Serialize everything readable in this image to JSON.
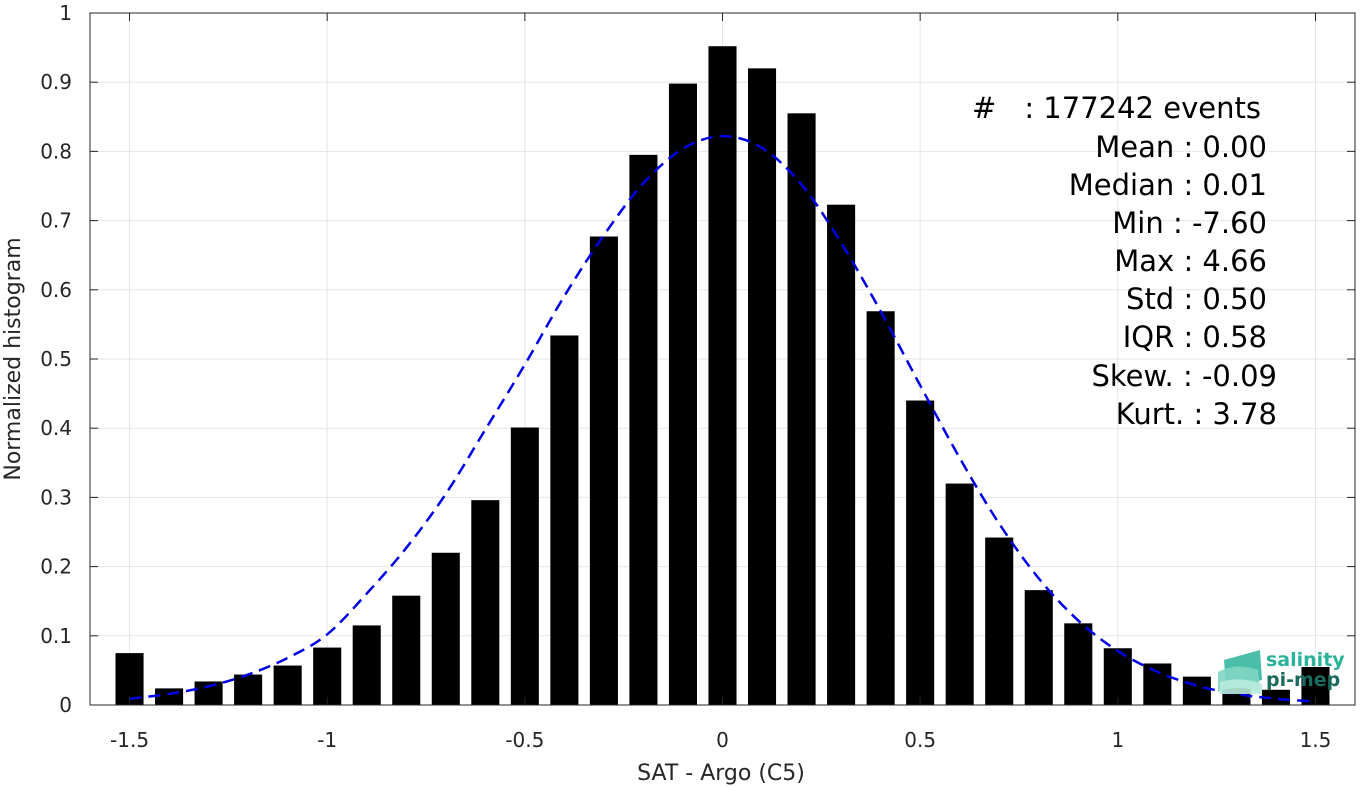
{
  "chart_data": {
    "type": "bar",
    "xlabel": "SAT - Argo (C5)",
    "ylabel": "Normalized histogram",
    "xlim": [
      -1.6,
      1.6
    ],
    "ylim": [
      0,
      1
    ],
    "grid": true,
    "x_ticks": [
      -1.5,
      -1,
      -0.5,
      0,
      0.5,
      1,
      1.5
    ],
    "x_tick_labels": [
      "-1.5",
      "-1",
      "-0.5",
      "0",
      "0.5",
      "1",
      "1.5"
    ],
    "y_ticks": [
      0,
      0.1,
      0.2,
      0.3,
      0.4,
      0.5,
      0.6,
      0.7,
      0.8,
      0.9,
      1
    ],
    "y_tick_labels": [
      "0",
      "0.1",
      "0.2",
      "0.3",
      "0.4",
      "0.5",
      "0.6",
      "0.7",
      "0.8",
      "0.9",
      "1"
    ],
    "bar_color": "#000000",
    "bars": {
      "x": [
        -1.5,
        -1.4,
        -1.3,
        -1.2,
        -1.1,
        -1.0,
        -0.9,
        -0.8,
        -0.7,
        -0.6,
        -0.5,
        -0.4,
        -0.3,
        -0.2,
        -0.1,
        0.0,
        0.1,
        0.2,
        0.3,
        0.4,
        0.5,
        0.6,
        0.7,
        0.8,
        0.9,
        1.0,
        1.1,
        1.2,
        1.3,
        1.4,
        1.5
      ],
      "values": [
        0.075,
        0.024,
        0.034,
        0.044,
        0.057,
        0.083,
        0.115,
        0.158,
        0.22,
        0.296,
        0.401,
        0.534,
        0.677,
        0.795,
        0.898,
        0.952,
        0.92,
        0.855,
        0.723,
        0.569,
        0.44,
        0.32,
        0.242,
        0.166,
        0.118,
        0.082,
        0.06,
        0.041,
        0.028,
        0.022,
        0.055
      ]
    },
    "fit_curve": {
      "style": "dashed",
      "color": "#0000e6",
      "x": [
        -1.5,
        -1.4,
        -1.3,
        -1.2,
        -1.1,
        -1.0,
        -0.9,
        -0.8,
        -0.7,
        -0.6,
        -0.5,
        -0.4,
        -0.3,
        -0.2,
        -0.1,
        0.0,
        0.1,
        0.2,
        0.3,
        0.4,
        0.5,
        0.6,
        0.7,
        0.8,
        0.9,
        1.0,
        1.1,
        1.2,
        1.3,
        1.4,
        1.5
      ],
      "y": [
        0.009,
        0.016,
        0.027,
        0.044,
        0.068,
        0.102,
        0.161,
        0.227,
        0.305,
        0.398,
        0.492,
        0.591,
        0.679,
        0.754,
        0.804,
        0.822,
        0.805,
        0.752,
        0.668,
        0.569,
        0.462,
        0.357,
        0.262,
        0.183,
        0.122,
        0.078,
        0.048,
        0.028,
        0.016,
        0.009,
        0.005
      ]
    }
  },
  "stats": [
    {
      "name": "#",
      "value": ": 177242 events"
    },
    {
      "name": "Mean",
      "value": ": 0.00"
    },
    {
      "name": "Median",
      "value": ": 0.01"
    },
    {
      "name": "Min",
      "value": ": -7.60"
    },
    {
      "name": "Max",
      "value": ": 4.66"
    },
    {
      "name": "Std",
      "value": ": 0.50"
    },
    {
      "name": "IQR",
      "value": ": 0.58"
    },
    {
      "name": "Skew.",
      "value": ": -0.09"
    },
    {
      "name": "Kurt.",
      "value": ": 3.78"
    }
  ],
  "logo": {
    "line1": "salinity",
    "line2": "pi-mep",
    "color1": "#2bb39a",
    "color2": "#1b6b5e"
  }
}
